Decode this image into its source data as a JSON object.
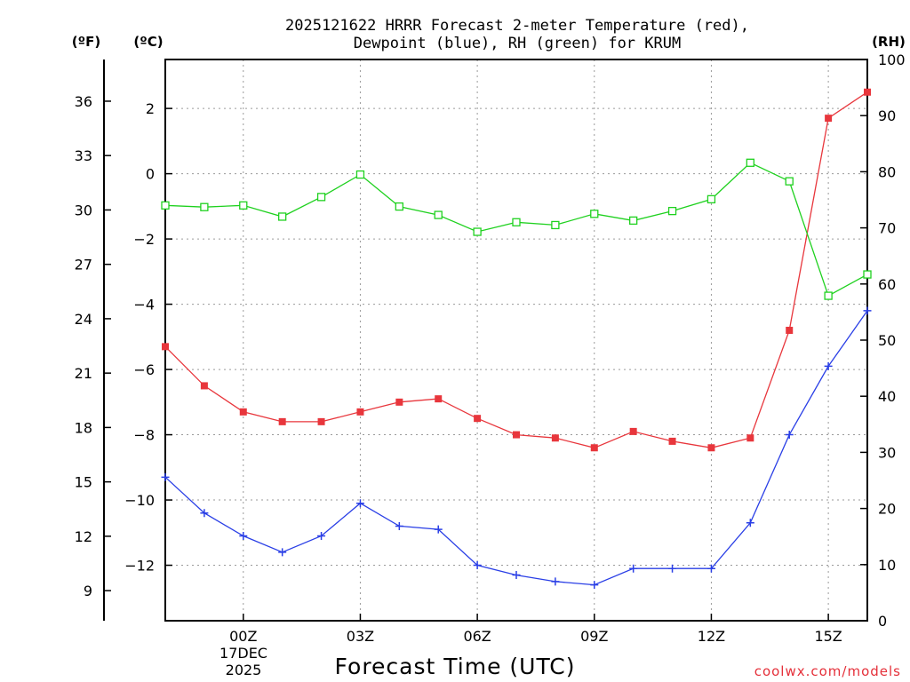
{
  "chart_data": {
    "type": "line",
    "title_line1": "2025121622 HRRR Forecast 2-meter Temperature (red),",
    "title_line2": "Dewpoint (blue), RH (green) for KRUM",
    "xlabel": "Forecast Time (UTC)",
    "date_line1": "17DEC",
    "date_line2": "2025",
    "credit": "coolwx.com/models",
    "unit_fahrenheit": "(ºF)",
    "unit_celsius": "(ºC)",
    "unit_rh": "(RH)",
    "x": [
      -2,
      -1,
      0,
      1,
      2,
      3,
      4,
      5,
      6,
      7,
      8,
      9,
      10,
      11,
      12,
      13,
      14,
      15,
      16
    ],
    "x_ticks": [
      {
        "x": 0,
        "label": "00Z"
      },
      {
        "x": 3,
        "label": "03Z"
      },
      {
        "x": 6,
        "label": "06Z"
      },
      {
        "x": 9,
        "label": "09Z"
      },
      {
        "x": 12,
        "label": "12Z"
      },
      {
        "x": 15,
        "label": "15Z"
      }
    ],
    "xlim": [
      -2,
      16
    ],
    "ylim_celsius": [
      -13.7,
      3.5
    ],
    "ylim_rh": [
      0,
      100
    ],
    "celsius_ticks": [
      2,
      0,
      -2,
      -4,
      -6,
      -8,
      -10,
      -12
    ],
    "fahrenheit_ticks": [
      36,
      33,
      30,
      27,
      24,
      21,
      18,
      15,
      12,
      9
    ],
    "rh_ticks": [
      0,
      10,
      20,
      30,
      40,
      50,
      60,
      70,
      80,
      90,
      100
    ],
    "series": [
      {
        "name": "Temperature",
        "axis": "celsius",
        "color": "#e8363c",
        "marker": "filled-square",
        "values": [
          -5.3,
          -6.5,
          -7.3,
          -7.6,
          -7.6,
          -7.3,
          -7.0,
          -6.9,
          -7.5,
          -8.0,
          -8.1,
          -8.4,
          -7.9,
          -8.2,
          -8.4,
          -8.1,
          -4.8,
          1.7,
          2.5
        ]
      },
      {
        "name": "Dewpoint",
        "axis": "celsius",
        "color": "#2a3fe6",
        "marker": "plus",
        "values": [
          -9.3,
          -10.4,
          -11.1,
          -11.6,
          -11.1,
          -10.1,
          -10.8,
          -10.9,
          -12.0,
          -12.3,
          -12.5,
          -12.6,
          -12.1,
          -12.1,
          -12.1,
          -10.7,
          -8.0,
          -5.9,
          -4.2
        ]
      },
      {
        "name": "RH",
        "axis": "rh",
        "color": "#1fd11f",
        "marker": "open-square",
        "values": [
          74,
          73.7,
          74,
          72,
          75.5,
          79.5,
          73.8,
          72.3,
          69.3,
          71,
          70.5,
          72.5,
          71.3,
          73,
          75.1,
          81.6,
          78.3,
          57.9,
          61.7
        ]
      }
    ]
  }
}
